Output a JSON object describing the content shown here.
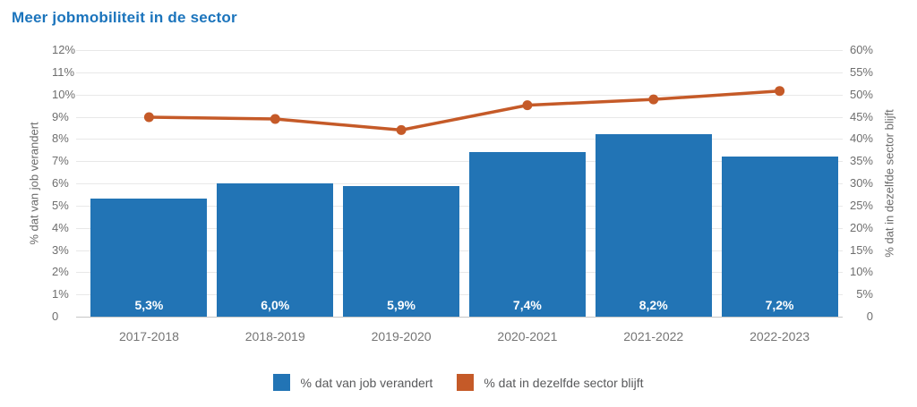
{
  "chart": {
    "title": "Meer jobmobiliteit in de sector",
    "colors": {
      "bar": "#2274b5",
      "line": "#c55a28",
      "title": "#1b74bc",
      "gridline": "#e8e8e8",
      "baseline": "#c6c6c6",
      "axis_text": "#6e6e6e",
      "category_text": "#757575",
      "bar_label_text": "#ffffff"
    }
  },
  "chart_data": {
    "type": "bar",
    "title": "Meer jobmobiliteit in de sector",
    "categories": [
      "2017-2018",
      "2018-2019",
      "2019-2020",
      "2020-2021",
      "2021-2022",
      "2022-2023"
    ],
    "series": [
      {
        "name": "% dat van job verandert",
        "type": "bar",
        "axis": "left",
        "values": [
          5.3,
          6.0,
          5.9,
          7.4,
          8.2,
          7.2
        ],
        "labels": [
          "5,3%",
          "6,0%",
          "5,9%",
          "7,4%",
          "8,2%",
          "7,2%"
        ]
      },
      {
        "name": "% dat in dezelfde sector blijft",
        "type": "line",
        "axis": "right",
        "values": [
          44.9,
          44.5,
          42.0,
          47.6,
          48.9,
          50.8
        ]
      }
    ],
    "left_axis": {
      "label": "% dat van job verandert",
      "range": [
        0,
        12
      ],
      "ticks": [
        "12%",
        "11%",
        "10%",
        "9%",
        "8%",
        "7%",
        "6%",
        "5%",
        "4%",
        "3%",
        "2%",
        "1%",
        "0"
      ]
    },
    "right_axis": {
      "label": "% dat in dezelfde sector blijft",
      "range": [
        0,
        60
      ],
      "ticks": [
        "60%",
        "55%",
        "50%",
        "45%",
        "40%",
        "35%",
        "30%",
        "25%",
        "20%",
        "15%",
        "10%",
        "5%",
        "0"
      ]
    },
    "grid": true,
    "legend_position": "bottom"
  }
}
